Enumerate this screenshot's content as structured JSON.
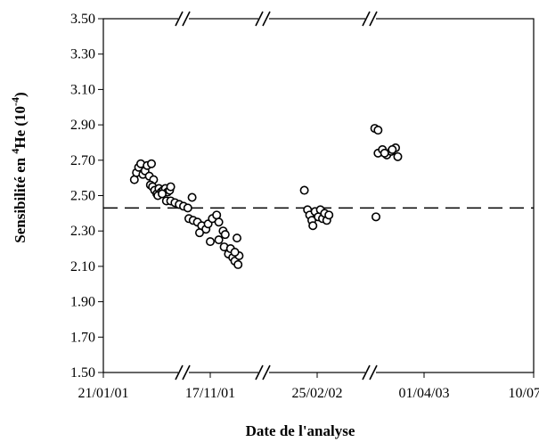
{
  "chart_data": {
    "type": "scatter",
    "xlabel": "Date de l'analyse",
    "ylabel": {
      "prefix": "Sensibilité en ",
      "superscript": "4",
      "element": "He (10",
      "exponent": "-4",
      "suffix": ")"
    },
    "ylim": [
      1.5,
      3.5
    ],
    "y_ticks": [
      1.5,
      1.7,
      1.9,
      2.1,
      2.3,
      2.5,
      2.7,
      2.9,
      3.1,
      3.3,
      3.5
    ],
    "y_tick_labels": [
      "1.50",
      "1.70",
      "1.90",
      "2.10",
      "2.30",
      "2.50",
      "2.70",
      "2.90",
      "3.10",
      "3.30",
      "3.50"
    ],
    "x_tick_labels": [
      "21/01/01",
      "17/11/01",
      "25/02/02",
      "01/04/03",
      "10/07/03"
    ],
    "axis_breaks": 3,
    "reference_line": {
      "y": 2.43,
      "style": "dashed"
    },
    "grid": false,
    "legend": "none",
    "marker": "open-circle",
    "groups": [
      {
        "near": "21/01/01",
        "points": [
          [
            0.29,
            2.59
          ],
          [
            0.31,
            2.63
          ],
          [
            0.33,
            2.66
          ],
          [
            0.35,
            2.68
          ],
          [
            0.37,
            2.62
          ],
          [
            0.39,
            2.64
          ],
          [
            0.41,
            2.67
          ],
          [
            0.43,
            2.61
          ],
          [
            0.45,
            2.68
          ],
          [
            0.47,
            2.59
          ],
          [
            0.44,
            2.56
          ],
          [
            0.46,
            2.55
          ],
          [
            0.48,
            2.53
          ],
          [
            0.5,
            2.51
          ],
          [
            0.52,
            2.54
          ],
          [
            0.54,
            2.52
          ],
          [
            0.56,
            2.53
          ],
          [
            0.58,
            2.54
          ],
          [
            0.6,
            2.52
          ],
          [
            0.62,
            2.53
          ],
          [
            0.63,
            2.55
          ],
          [
            0.51,
            2.5
          ],
          [
            0.55,
            2.51
          ]
        ]
      },
      {
        "near": "17/11/01",
        "points": [
          [
            -0.41,
            2.47
          ],
          [
            -0.37,
            2.47
          ],
          [
            -0.33,
            2.46
          ],
          [
            -0.29,
            2.45
          ],
          [
            -0.25,
            2.44
          ],
          [
            -0.21,
            2.43
          ],
          [
            -0.17,
            2.49
          ],
          [
            -0.2,
            2.37
          ],
          [
            -0.16,
            2.36
          ],
          [
            -0.12,
            2.35
          ],
          [
            -0.08,
            2.33
          ],
          [
            -0.04,
            2.31
          ],
          [
            -0.1,
            2.29
          ],
          [
            -0.02,
            2.34
          ],
          [
            0.02,
            2.37
          ],
          [
            0.06,
            2.39
          ],
          [
            0.08,
            2.35
          ],
          [
            0.12,
            2.3
          ],
          [
            0.14,
            2.28
          ],
          [
            0.0,
            2.24
          ],
          [
            0.08,
            2.25
          ],
          [
            0.13,
            2.21
          ],
          [
            0.17,
            2.17
          ],
          [
            0.19,
            2.2
          ],
          [
            0.21,
            2.15
          ],
          [
            0.23,
            2.13
          ],
          [
            0.25,
            2.26
          ],
          [
            0.27,
            2.16
          ],
          [
            0.26,
            2.11
          ],
          [
            0.23,
            2.18
          ]
        ]
      },
      {
        "near": "25/02/02",
        "points": [
          [
            -0.12,
            2.53
          ],
          [
            -0.09,
            2.42
          ],
          [
            -0.07,
            2.39
          ],
          [
            -0.05,
            2.36
          ],
          [
            -0.04,
            2.33
          ],
          [
            -0.02,
            2.41
          ],
          [
            0.01,
            2.38
          ],
          [
            0.03,
            2.42
          ],
          [
            0.05,
            2.37
          ],
          [
            0.07,
            2.4
          ],
          [
            0.09,
            2.36
          ],
          [
            0.11,
            2.39
          ],
          [
            0.55,
            2.38
          ]
        ]
      },
      {
        "near": "01/04/03",
        "points": [
          [
            -0.45,
            2.88
          ],
          [
            -0.42,
            2.87
          ],
          [
            -0.42,
            2.74
          ],
          [
            -0.38,
            2.76
          ],
          [
            -0.34,
            2.73
          ],
          [
            -0.3,
            2.75
          ],
          [
            -0.26,
            2.77
          ],
          [
            -0.24,
            2.72
          ],
          [
            -0.36,
            2.74
          ],
          [
            -0.29,
            2.76
          ]
        ]
      }
    ]
  }
}
